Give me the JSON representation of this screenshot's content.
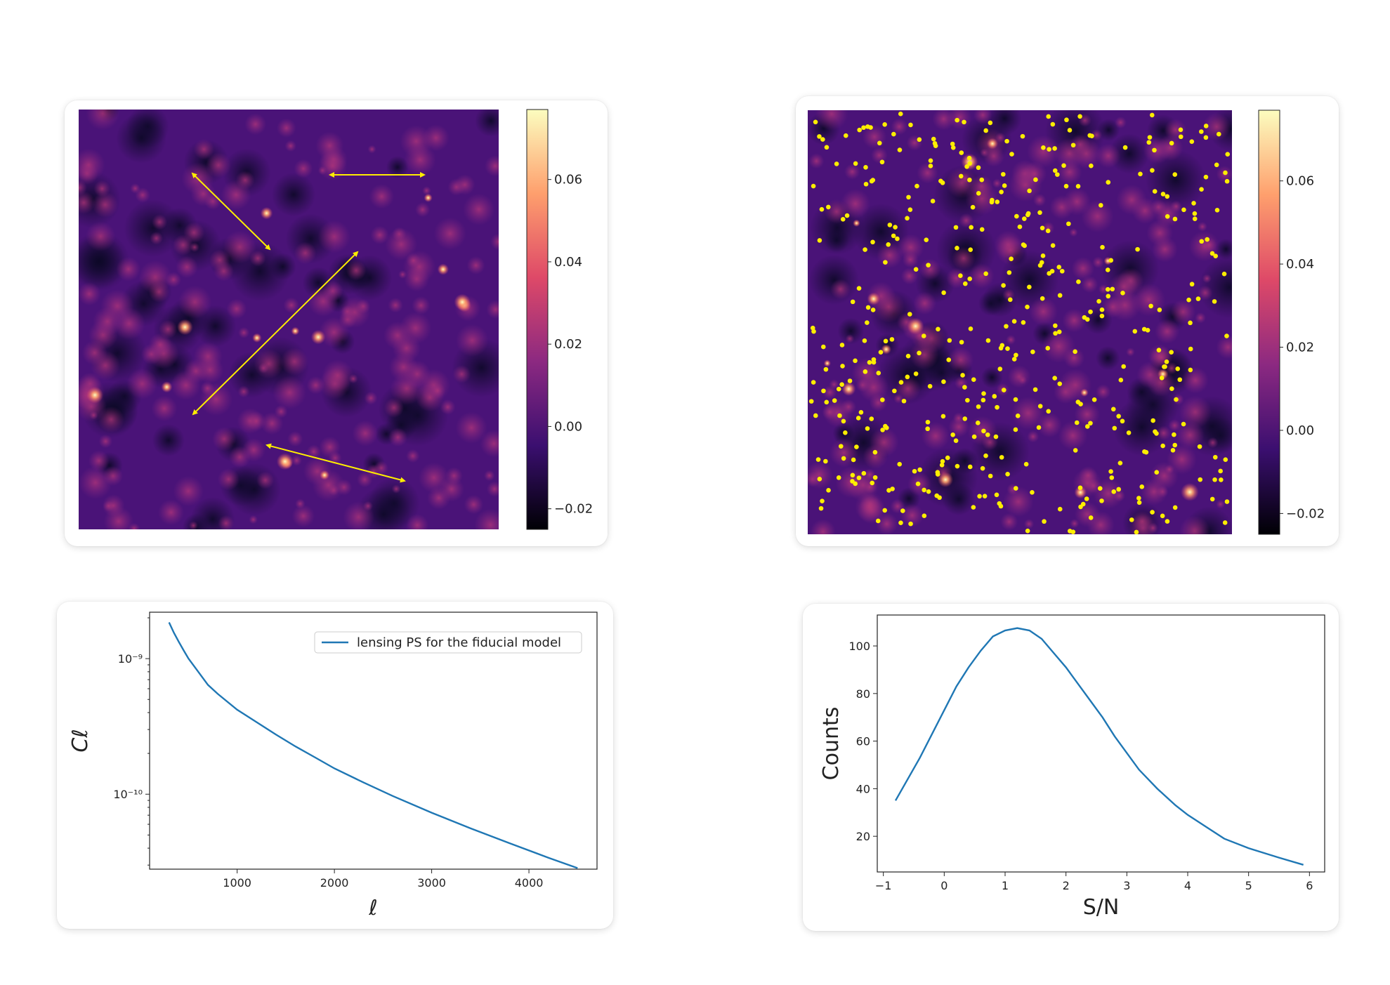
{
  "colorbar": {
    "ticks": [
      0.06,
      0.04,
      0.02,
      0.0,
      -0.02
    ],
    "tick_labels": [
      "0.06",
      "0.04",
      "0.02",
      "0.00",
      "−0.02"
    ],
    "range": [
      -0.025,
      0.077
    ],
    "colormap": [
      "#000004",
      "#3b0f70",
      "#8c2981",
      "#de4968",
      "#fe9f6d",
      "#fcfdbf"
    ]
  },
  "annotations": {
    "arrow_color": "#ffee00",
    "peak_marker_color": "#ffee00"
  },
  "chart_data": [
    {
      "type": "heatmap",
      "colorbar_ticks": [
        "0.06",
        "0.04",
        "0.02",
        "0.00",
        "−0.02"
      ],
      "annotations": "four yellow double-headed arrows"
    },
    {
      "type": "heatmap",
      "colorbar_ticks": [
        "0.06",
        "0.04",
        "0.02",
        "0.00",
        "−0.02"
      ],
      "annotations": "yellow peak markers"
    },
    {
      "type": "line",
      "xlabel": "ℓ",
      "ylabel": "Cℓ",
      "yscale": "log",
      "xlim": [
        100,
        4700
      ],
      "ylim": [
        2.8e-11,
        2.2e-09
      ],
      "x_ticks": [
        1000,
        2000,
        3000,
        4000
      ],
      "x_tick_labels": [
        "1000",
        "2000",
        "3000",
        "4000"
      ],
      "y_ticks": [
        1e-09,
        1e-10
      ],
      "y_tick_labels": [
        "10⁻⁹",
        "10⁻¹⁰"
      ],
      "legend_position": "top-right",
      "series": [
        {
          "name": "lensing PS for the fiducial model",
          "color": "#1f77b4",
          "x": [
            300,
            350,
            400,
            450,
            500,
            600,
            700,
            800,
            1000,
            1200,
            1400,
            1600,
            1800,
            2000,
            2300,
            2600,
            3000,
            3400,
            3800,
            4200,
            4500
          ],
          "y": [
            1.85e-09,
            1.55e-09,
            1.33e-09,
            1.15e-09,
            1e-09,
            8e-10,
            6.4e-10,
            5.5e-10,
            4.2e-10,
            3.4e-10,
            2.75e-10,
            2.25e-10,
            1.87e-10,
            1.55e-10,
            1.22e-10,
            9.7e-11,
            7.3e-11,
            5.6e-11,
            4.35e-11,
            3.4e-11,
            2.85e-11
          ]
        }
      ]
    },
    {
      "type": "line",
      "xlabel": "S/N",
      "ylabel": "Counts",
      "xlim": [
        -1.1,
        6.25
      ],
      "ylim": [
        5,
        113
      ],
      "x_ticks": [
        -1,
        0,
        1,
        2,
        3,
        4,
        5,
        6
      ],
      "x_tick_labels": [
        "−1",
        "0",
        "1",
        "2",
        "3",
        "4",
        "5",
        "6"
      ],
      "y_ticks": [
        20,
        40,
        60,
        80,
        100
      ],
      "y_tick_labels": [
        "20",
        "40",
        "60",
        "80",
        "100"
      ],
      "series": [
        {
          "color": "#1f77b4",
          "x": [
            -0.8,
            -0.6,
            -0.4,
            -0.2,
            0.0,
            0.2,
            0.4,
            0.6,
            0.8,
            1.0,
            1.2,
            1.4,
            1.6,
            1.8,
            2.0,
            2.2,
            2.4,
            2.6,
            2.8,
            3.0,
            3.2,
            3.5,
            3.8,
            4.0,
            4.3,
            4.6,
            5.0,
            5.5,
            5.9
          ],
          "y": [
            35,
            44,
            53,
            63,
            73,
            83,
            91,
            98,
            104,
            106.5,
            107.5,
            106.5,
            103,
            97,
            91,
            84,
            77,
            70,
            62,
            55,
            48,
            40,
            33,
            29,
            24,
            19,
            15,
            11,
            8
          ]
        }
      ]
    }
  ]
}
